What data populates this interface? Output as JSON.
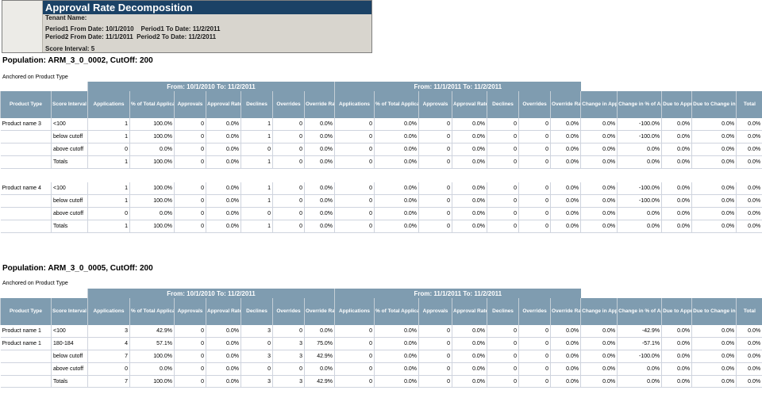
{
  "header": {
    "title": "Approval Rate Decomposition",
    "tenant_label": "Tenant Name:",
    "period_line_1": "Period1 From Date: 10/1/2010    Period1 To Date: 11/2/2011",
    "period_line_2": "Period2 From Date: 11/1/2011  Period2 To Date: 11/2/2011",
    "score_interval": "Score Interval: 5"
  },
  "columns": [
    "Product Type",
    "Score Interval",
    "Applications",
    "% of Total Applications",
    "Approvals",
    "Approval Rate",
    "Declines",
    "Overrides",
    "Override Rate",
    "Applications",
    "% of Total Applications",
    "Approvals",
    "Approval Rate",
    "Declines",
    "Overrides",
    "Override Rate",
    "Change in Approval Rate",
    "Change in % of Applications",
    "Due to Approval Rate",
    "Due to Change in % Applications",
    "Total"
  ],
  "sections": [
    {
      "population": "Population: ARM_3_0_0002, CutOff: 200",
      "anchored": "Anchored on Product Type",
      "period1_band": "From: 10/1/2010  To: 11/2/2011",
      "period2_band": "From: 11/1/2011  To: 11/2/2011",
      "groups": [
        {
          "rows": [
            [
              "Product name 3",
              "<100",
              "1",
              "100.0%",
              "0",
              "0.0%",
              "1",
              "0",
              "0.0%",
              "0",
              "0.0%",
              "0",
              "0.0%",
              "0",
              "0",
              "0.0%",
              "0.0%",
              "-100.0%",
              "0.0%",
              "0.0%",
              "0.0%"
            ],
            [
              "",
              "below cutoff",
              "1",
              "100.0%",
              "0",
              "0.0%",
              "1",
              "0",
              "0.0%",
              "0",
              "0.0%",
              "0",
              "0.0%",
              "0",
              "0",
              "0.0%",
              "0.0%",
              "-100.0%",
              "0.0%",
              "0.0%",
              "0.0%"
            ],
            [
              "",
              "above cutoff",
              "0",
              "0.0%",
              "0",
              "0.0%",
              "0",
              "0",
              "0.0%",
              "0",
              "0.0%",
              "0",
              "0.0%",
              "0",
              "0",
              "0.0%",
              "0.0%",
              "0.0%",
              "0.0%",
              "0.0%",
              "0.0%"
            ],
            [
              "",
              "Totals",
              "1",
              "100.0%",
              "0",
              "0.0%",
              "1",
              "0",
              "0.0%",
              "0",
              "0.0%",
              "0",
              "0.0%",
              "0",
              "0",
              "0.0%",
              "0.0%",
              "0.0%",
              "0.0%",
              "0.0%",
              "0.0%"
            ]
          ]
        },
        {
          "rows": [
            [
              "Product name 4",
              "<100",
              "1",
              "100.0%",
              "0",
              "0.0%",
              "1",
              "0",
              "0.0%",
              "0",
              "0.0%",
              "0",
              "0.0%",
              "0",
              "0",
              "0.0%",
              "0.0%",
              "-100.0%",
              "0.0%",
              "0.0%",
              "0.0%"
            ],
            [
              "",
              "below cutoff",
              "1",
              "100.0%",
              "0",
              "0.0%",
              "1",
              "0",
              "0.0%",
              "0",
              "0.0%",
              "0",
              "0.0%",
              "0",
              "0",
              "0.0%",
              "0.0%",
              "-100.0%",
              "0.0%",
              "0.0%",
              "0.0%"
            ],
            [
              "",
              "above cutoff",
              "0",
              "0.0%",
              "0",
              "0.0%",
              "0",
              "0",
              "0.0%",
              "0",
              "0.0%",
              "0",
              "0.0%",
              "0",
              "0",
              "0.0%",
              "0.0%",
              "0.0%",
              "0.0%",
              "0.0%",
              "0.0%"
            ],
            [
              "",
              "Totals",
              "1",
              "100.0%",
              "0",
              "0.0%",
              "1",
              "0",
              "0.0%",
              "0",
              "0.0%",
              "0",
              "0.0%",
              "0",
              "0",
              "0.0%",
              "0.0%",
              "0.0%",
              "0.0%",
              "0.0%",
              "0.0%"
            ]
          ]
        }
      ]
    },
    {
      "population": "Population: ARM_3_0_0005, CutOff: 200",
      "anchored": "Anchored on Product Type",
      "period1_band": "From: 10/1/2010  To: 11/2/2011",
      "period2_band": "From: 11/1/2011  To: 11/2/2011",
      "groups": [
        {
          "rows": [
            [
              "Product name 1",
              "<100",
              "3",
              "42.9%",
              "0",
              "0.0%",
              "3",
              "0",
              "0.0%",
              "0",
              "0.0%",
              "0",
              "0.0%",
              "0",
              "0",
              "0.0%",
              "0.0%",
              "-42.9%",
              "0.0%",
              "0.0%",
              "0.0%"
            ],
            [
              "Product name 1",
              "180-184",
              "4",
              "57.1%",
              "0",
              "0.0%",
              "0",
              "3",
              "75.0%",
              "0",
              "0.0%",
              "0",
              "0.0%",
              "0",
              "0",
              "0.0%",
              "0.0%",
              "-57.1%",
              "0.0%",
              "0.0%",
              "0.0%"
            ],
            [
              "",
              "below cutoff",
              "7",
              "100.0%",
              "0",
              "0.0%",
              "3",
              "3",
              "42.9%",
              "0",
              "0.0%",
              "0",
              "0.0%",
              "0",
              "0",
              "0.0%",
              "0.0%",
              "-100.0%",
              "0.0%",
              "0.0%",
              "0.0%"
            ],
            [
              "",
              "above cutoff",
              "0",
              "0.0%",
              "0",
              "0.0%",
              "0",
              "0",
              "0.0%",
              "0",
              "0.0%",
              "0",
              "0.0%",
              "0",
              "0",
              "0.0%",
              "0.0%",
              "0.0%",
              "0.0%",
              "0.0%",
              "0.0%"
            ],
            [
              "",
              "Totals",
              "7",
              "100.0%",
              "0",
              "0.0%",
              "3",
              "3",
              "42.9%",
              "0",
              "0.0%",
              "0",
              "0.0%",
              "0",
              "0",
              "0.0%",
              "0.0%",
              "0.0%",
              "0.0%",
              "0.0%",
              "0.0%"
            ]
          ]
        }
      ]
    }
  ]
}
